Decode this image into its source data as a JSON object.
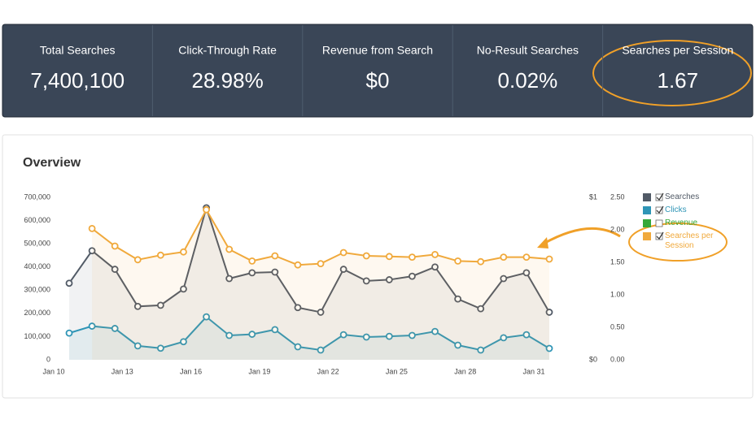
{
  "kpis": [
    {
      "label": "Total Searches",
      "value": "7,400,100"
    },
    {
      "label": "Click-Through Rate",
      "value": "28.98%"
    },
    {
      "label": "Revenue from Search",
      "value": "$0"
    },
    {
      "label": "No-Result Searches",
      "value": "0.02%"
    },
    {
      "label": "Searches per Session",
      "value": "1.67"
    }
  ],
  "chart_data": {
    "type": "line",
    "title": "Overview",
    "categories": [
      "Jan 10",
      null,
      null,
      "Jan 13",
      null,
      null,
      "Jan 16",
      null,
      null,
      "Jan 19",
      null,
      null,
      "Jan 22",
      null,
      null,
      "Jan 25",
      null,
      null,
      "Jan 28",
      null,
      null,
      "Jan 31"
    ],
    "series": [
      {
        "name": "Searches",
        "color": "#515a66",
        "checked": true,
        "axis": "y",
        "values": [
          330000,
          470000,
          390000,
          230000,
          235000,
          305000,
          655000,
          350000,
          375000,
          378000,
          225000,
          205000,
          390000,
          340000,
          345000,
          360000,
          400000,
          262000,
          220000,
          350000,
          375000,
          205000
        ]
      },
      {
        "name": "Clicks",
        "color": "#2f95b6",
        "checked": true,
        "axis": "y",
        "values": [
          115000,
          145000,
          135000,
          60000,
          50000,
          78000,
          185000,
          105000,
          110000,
          130000,
          56000,
          42000,
          108000,
          98000,
          101000,
          105000,
          122000,
          63000,
          42000,
          95000,
          108000,
          49000
        ]
      },
      {
        "name": "Revenue",
        "color": "#35a83a",
        "checked": false,
        "axis": "y3"
      },
      {
        "name": "Searches per Session",
        "color": "#f0a93c",
        "checked": true,
        "axis": "y2",
        "values": [
          null,
          2.02,
          1.75,
          1.54,
          1.61,
          1.66,
          2.31,
          1.7,
          1.52,
          1.6,
          1.46,
          1.48,
          1.65,
          1.6,
          1.59,
          1.58,
          1.62,
          1.52,
          1.51,
          1.58,
          1.58,
          1.55
        ]
      }
    ],
    "ylim": [
      0,
      700000
    ],
    "yticks": [
      0,
      {
        "value": 100000,
        "label": "100,000"
      },
      {
        "value": 200000,
        "label": "200,000"
      },
      {
        "value": 300000,
        "label": "300,000"
      },
      {
        "value": 400000,
        "label": "400,000"
      },
      {
        "value": 500000,
        "label": "500,000"
      },
      {
        "value": 600000,
        "label": "600,000"
      },
      {
        "value": 700000,
        "label": "700,000"
      }
    ],
    "y2lim": [
      0,
      2.5
    ],
    "y2ticks": [
      {
        "value": 0,
        "label": "0.00"
      },
      {
        "value": 0.5,
        "label": "0.50"
      },
      {
        "value": 1,
        "label": "1.00"
      },
      {
        "value": 1.5,
        "label": "1.50"
      },
      {
        "value": 2,
        "label": "2.00"
      },
      {
        "value": 2.5,
        "label": "2.50"
      }
    ],
    "y3lim": [
      0,
      1
    ],
    "y3ticks": [
      {
        "value": 0,
        "label": "$0"
      },
      {
        "value": 1,
        "label": "$1"
      }
    ],
    "grid": false,
    "legend": "right"
  }
}
